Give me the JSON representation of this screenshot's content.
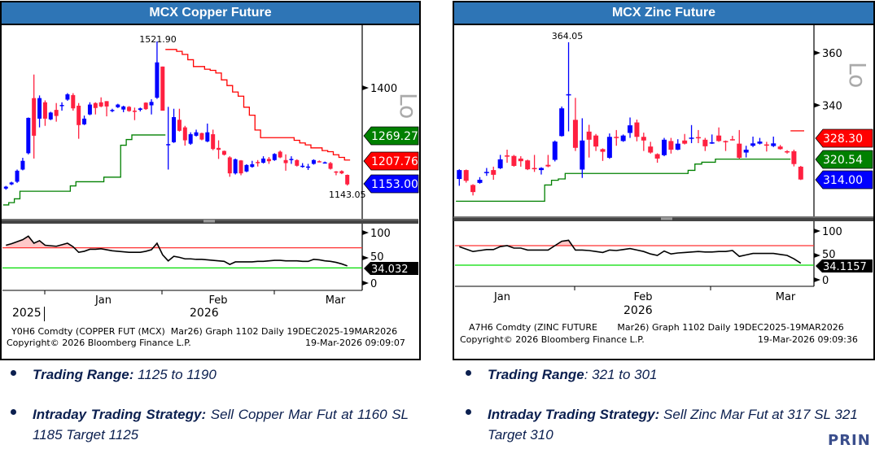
{
  "panels": [
    {
      "title": "MCX Copper Future",
      "footer_line1": "Y0H6 Comdty (COPPER FUT (MCX)  Mar26) Graph 1102 Daily 19DEC2025-19MAR2026",
      "footer_line2_left": "Copyright© 2026 Bloomberg Finance L.P.",
      "footer_line2_right": "19-Mar-2026 09:09:07",
      "year_left": "2025",
      "year_right": "2026"
    },
    {
      "title": "MCX Zinc Future",
      "footer_line1": "A7H6 Comdty (ZINC FUTURE       Mar26) Graph 1102 Daily 19DEC2025-19MAR2026",
      "footer_line2_left": "Copyright© 2026 Bloomberg Finance L.P.",
      "footer_line2_right": "19-Mar-2026 09:09:36",
      "year_right": "2026"
    }
  ],
  "notes": {
    "copper": {
      "range_label": "Trading Range:",
      "range_value": " 1125 to 1190",
      "strategy_label": "Intraday Trading Strategy:",
      "strategy_value": " Sell Copper Mar Fut at 1160 SL 1185  Target 1125"
    },
    "zinc": {
      "range_label": "Trading Range",
      "range_value": ":  321 to  301",
      "strategy_label": "Intraday Trading Strategy:",
      "strategy_value": " Sell Zinc Mar Fut at 317 SL 321 Target 310"
    }
  },
  "logo_text": "PRIN",
  "colors": {
    "title_bar": "#2e75b6",
    "up": "#0000ff",
    "down": "#ff2040",
    "support": "#008000",
    "resistance": "#ff0000",
    "rsi_upper": "#ff3030",
    "rsi_lower": "#00dd00",
    "text": "#0b1f4f"
  },
  "chart_data": [
    {
      "type": "candlestick",
      "title": "MCX Copper Future",
      "x_ticks": [
        "Jan",
        "Feb",
        "Mar"
      ],
      "y_ticks": [
        1400
      ],
      "watermark": "Lo",
      "annotations": {
        "high": "1521.90",
        "low": "1143.05"
      },
      "price_labels": [
        {
          "value": "1269.27",
          "color": "#008000"
        },
        {
          "value": "1207.76",
          "color": "#ff0000"
        },
        {
          "value": "1153.00",
          "color": "#0000ff"
        }
      ],
      "candles_ohlc": [
        [
          1135,
          1142,
          1132,
          1140
        ],
        [
          1146,
          1153,
          1144,
          1151
        ],
        [
          1153,
          1185,
          1150,
          1182
        ],
        [
          1185,
          1216,
          1183,
          1208
        ],
        [
          1228,
          1322,
          1225,
          1321
        ],
        [
          1373,
          1435,
          1214,
          1274
        ],
        [
          1319,
          1380,
          1296,
          1373
        ],
        [
          1362,
          1367,
          1300,
          1319
        ],
        [
          1317,
          1337,
          1315,
          1335
        ],
        [
          1342,
          1360,
          1311,
          1326
        ],
        [
          1352,
          1362,
          1340,
          1355
        ],
        [
          1369,
          1386,
          1366,
          1383
        ],
        [
          1381,
          1386,
          1340,
          1346
        ],
        [
          1353,
          1360,
          1266,
          1302
        ],
        [
          1304,
          1327,
          1302,
          1319
        ],
        [
          1330,
          1362,
          1328,
          1356
        ],
        [
          1360,
          1362,
          1330,
          1347
        ],
        [
          1362,
          1375,
          1349,
          1351
        ],
        [
          1365,
          1365,
          1325,
          1351
        ],
        [
          1340,
          1345,
          1336,
          1342
        ],
        [
          1349,
          1358,
          1347,
          1356
        ],
        [
          1343,
          1353,
          1336,
          1351
        ],
        [
          1350,
          1352,
          1337,
          1339
        ],
        [
          1340,
          1348,
          1315,
          1337
        ],
        [
          1342,
          1348,
          1338,
          1346
        ],
        [
          1361,
          1362,
          1342,
          1344
        ],
        [
          1354,
          1370,
          1330,
          1363
        ],
        [
          1374,
          1521.9,
          1371,
          1467
        ],
        [
          1456,
          1456,
          1340,
          1340
        ],
        [
          1249,
          1350,
          1185,
          1252
        ],
        [
          1257,
          1345,
          1255,
          1323
        ],
        [
          1316,
          1345,
          1285,
          1287
        ],
        [
          1296,
          1300,
          1248,
          1262
        ],
        [
          1253,
          1283,
          1250,
          1278
        ],
        [
          1274,
          1290,
          1272,
          1283
        ],
        [
          1281,
          1282,
          1262,
          1264
        ],
        [
          1259,
          1306,
          1257,
          1283
        ],
        [
          1278,
          1290,
          1236,
          1239
        ],
        [
          1242,
          1262,
          1213,
          1237
        ],
        [
          1234,
          1235,
          1222,
          1224
        ],
        [
          1217,
          1220,
          1166,
          1175
        ],
        [
          1175,
          1214,
          1172,
          1212
        ],
        [
          1209,
          1210,
          1170,
          1175
        ],
        [
          1180,
          1199,
          1178,
          1197
        ],
        [
          1192,
          1208,
          1190,
          1199
        ],
        [
          1205,
          1210,
          1193,
          1202
        ],
        [
          1203,
          1220,
          1201,
          1214
        ],
        [
          1213,
          1218,
          1200,
          1207
        ],
        [
          1210,
          1228,
          1208,
          1226
        ],
        [
          1232,
          1235,
          1215,
          1217
        ],
        [
          1210,
          1225,
          1182,
          1202
        ],
        [
          1211,
          1220,
          1200,
          1213
        ],
        [
          1210,
          1212,
          1193,
          1195
        ],
        [
          1194,
          1202,
          1190,
          1195
        ],
        [
          1192,
          1200,
          1184,
          1193
        ],
        [
          1200,
          1212,
          1198,
          1210
        ],
        [
          1207,
          1209,
          1204,
          1206
        ],
        [
          1203,
          1206,
          1201,
          1204
        ],
        [
          1202,
          1205,
          1185,
          1187
        ],
        [
          1180,
          1181,
          1170,
          1179
        ],
        [
          1181,
          1183,
          1173,
          1175
        ],
        [
          1171,
          1172,
          1143.05,
          1146
        ]
      ],
      "support_line": [
        1092,
        1098,
        1108,
        1128,
        1128,
        1128,
        1128,
        1128,
        1128,
        1128,
        1128,
        1128,
        1142,
        1153,
        1153,
        1153,
        1153,
        1153,
        1165,
        1165,
        1165,
        1249,
        1264,
        1276,
        1276,
        1276,
        1276,
        1276,
        1276,
        null,
        null,
        null,
        null,
        null,
        null,
        null,
        null,
        null,
        null,
        null,
        null,
        null,
        null,
        null,
        null,
        null,
        null,
        null,
        null,
        null,
        null,
        null,
        null,
        null,
        null,
        null,
        null,
        null,
        null,
        null,
        null,
        null
      ],
      "resistance_line": [
        null,
        null,
        null,
        null,
        null,
        null,
        null,
        null,
        null,
        null,
        null,
        null,
        null,
        null,
        null,
        null,
        null,
        null,
        null,
        null,
        null,
        null,
        null,
        null,
        null,
        null,
        null,
        null,
        null,
        1501,
        1501,
        1496,
        1488,
        1474,
        1456,
        1456,
        1449,
        1446,
        1439,
        1421,
        1406,
        1389,
        1378,
        1349,
        1328,
        1289,
        1269,
        1269,
        1269,
        1269,
        1269,
        1269,
        1262,
        1255,
        1250,
        1242,
        1242,
        1235,
        1232,
        1224,
        1217,
        1210
      ],
      "rsi": {
        "y_ticks": [
          100,
          50,
          0
        ],
        "upper": 70,
        "lower": 30,
        "last_label": "34.032",
        "values": [
          75,
          78,
          82,
          86,
          93,
          79,
          84,
          75,
          74,
          73,
          76,
          79,
          72,
          61,
          63,
          67,
          67,
          68,
          66,
          64,
          63,
          62,
          61,
          61,
          61,
          63,
          66,
          79,
          56,
          44,
          53,
          51,
          48,
          48,
          47,
          47,
          46,
          45,
          44,
          43,
          37,
          42,
          42,
          42,
          42,
          43,
          43,
          44,
          45,
          45,
          44,
          44,
          44,
          43,
          43,
          47,
          46,
          44,
          43,
          41,
          38,
          34.032
        ]
      }
    },
    {
      "type": "candlestick",
      "title": "MCX Zinc Future",
      "x_ticks": [
        "Jan",
        "Feb",
        "Mar"
      ],
      "y_ticks": [
        360,
        340
      ],
      "watermark": "Lo",
      "annotations": {
        "high": "364.05"
      },
      "price_labels": [
        {
          "value": "328.30",
          "color": "#ff0000"
        },
        {
          "value": "320.54",
          "color": "#008000"
        },
        {
          "value": "314.00",
          "color": "#0000ff"
        }
      ],
      "candles_ohlc": [
        [
          311.8,
          315.5,
          309.2,
          315.2
        ],
        [
          315.2,
          315.4,
          310.4,
          311.1
        ],
        [
          309.5,
          309.8,
          305.5,
          306.8
        ],
        [
          310.3,
          312.5,
          310.0,
          311.5
        ],
        [
          314.4,
          316.0,
          313.0,
          314.5
        ],
        [
          315.2,
          316.5,
          311.5,
          313.4
        ],
        [
          315.9,
          321.0,
          315.6,
          319.3
        ],
        [
          320.8,
          323.0,
          318.0,
          320.7
        ],
        [
          320.6,
          321.0,
          316.5,
          316.8
        ],
        [
          319.6,
          320.5,
          316.5,
          318.6
        ],
        [
          318.9,
          319.2,
          315.2,
          315.5
        ],
        [
          316.0,
          321.0,
          314.5,
          315.9
        ],
        [
          315.2,
          316.3,
          313.5,
          316.0
        ],
        [
          317.2,
          321.0,
          316.3,
          316.6
        ],
        [
          319.1,
          326.5,
          318.5,
          326.1
        ],
        [
          328.2,
          339.5,
          328.0,
          338.8
        ],
        [
          344.0,
          364.05,
          330.0,
          344.2
        ],
        [
          334.4,
          342.8,
          322.5,
          323.7
        ],
        [
          315.4,
          335.0,
          312.2,
          326.5
        ],
        [
          329.9,
          332.5,
          320.0,
          326.8
        ],
        [
          328.4,
          329.0,
          322.5,
          324.2
        ],
        [
          323.2,
          323.5,
          318.7,
          322.2
        ],
        [
          319.9,
          329.2,
          319.5,
          327.9
        ],
        [
          327.9,
          330.5,
          324.5,
          327.8
        ],
        [
          326.3,
          328.8,
          326.0,
          328.4
        ],
        [
          329.4,
          335.3,
          327.5,
          332.3
        ],
        [
          333.4,
          334.5,
          326.2,
          327.9
        ],
        [
          327.9,
          329.5,
          322.5,
          326.5
        ],
        [
          324.2,
          326.0,
          321.5,
          321.9
        ],
        [
          321.3,
          321.6,
          318.0,
          319.6
        ],
        [
          320.9,
          327.5,
          320.5,
          326.8
        ],
        [
          326.3,
          327.5,
          321.5,
          323.0
        ],
        [
          323.0,
          327.0,
          322.8,
          325.3
        ],
        [
          326.5,
          329.0,
          325.0,
          325.3
        ],
        [
          327.4,
          332.4,
          325.5,
          327.6
        ],
        [
          327.8,
          330.5,
          325.5,
          327.7
        ],
        [
          326.8,
          327.5,
          322.5,
          324.3
        ],
        [
          325.8,
          328.8,
          325.2,
          325.8
        ],
        [
          328.4,
          331.5,
          326.0,
          326.3
        ],
        [
          326.3,
          326.5,
          322.5,
          326.2
        ],
        [
          327.0,
          328.3,
          326.5,
          326.9
        ],
        [
          325.3,
          330.5,
          319.5,
          319.9
        ],
        [
          321.9,
          324.5,
          320.0,
          323.0
        ],
        [
          324.5,
          328.0,
          324.0,
          325.4
        ],
        [
          325.3,
          327.5,
          325.0,
          326.1
        ],
        [
          325.0,
          326.0,
          322.3,
          324.9
        ],
        [
          324.4,
          328.0,
          324.0,
          325.4
        ],
        [
          324.2,
          324.8,
          323.0,
          323.2
        ],
        [
          322.4,
          322.8,
          321.5,
          322.3
        ],
        [
          322.4,
          323.0,
          316.6,
          317.5
        ],
        [
          316.5,
          316.8,
          311.4,
          311.6
        ]
      ],
      "support_line": [
        303.3,
        303.3,
        303.3,
        303.3,
        303.3,
        303.3,
        303.3,
        303.3,
        303.3,
        303.3,
        303.3,
        303.3,
        303.3,
        309.5,
        311.3,
        311.8,
        313.9,
        313.9,
        313.9,
        313.9,
        313.9,
        313.9,
        313.9,
        313.9,
        313.9,
        313.9,
        313.9,
        313.9,
        313.9,
        313.9,
        313.9,
        313.9,
        313.9,
        313.9,
        315.1,
        317.5,
        318.2,
        318.2,
        319.4,
        319.4,
        319.4,
        319.4,
        319.4,
        319.4,
        319.4,
        319.4,
        319.4,
        319.4,
        319.4,
        null,
        null
      ],
      "resistance_line": [
        null,
        null,
        null,
        null,
        null,
        null,
        null,
        null,
        null,
        null,
        null,
        null,
        null,
        null,
        null,
        null,
        null,
        null,
        null,
        null,
        null,
        null,
        null,
        null,
        null,
        null,
        null,
        null,
        null,
        null,
        null,
        null,
        null,
        null,
        null,
        null,
        null,
        null,
        null,
        null,
        null,
        null,
        null,
        null,
        null,
        null,
        null,
        null,
        null,
        330.2,
        330.2
      ],
      "rsi": {
        "y_ticks": [
          100,
          50,
          0
        ],
        "upper": 70,
        "lower": 30,
        "last_label": "34.1157",
        "values": [
          68,
          63,
          58,
          60,
          62,
          62,
          68,
          70,
          65,
          65,
          61,
          61,
          61,
          61,
          70,
          79,
          81,
          61,
          61,
          60,
          58,
          56,
          61,
          60,
          62,
          64,
          61,
          58,
          53,
          50,
          59,
          53,
          55,
          56,
          57,
          58,
          57,
          57,
          58,
          58,
          60,
          48,
          51,
          54,
          54,
          54,
          54,
          52,
          50,
          43,
          34.1157
        ]
      }
    }
  ]
}
